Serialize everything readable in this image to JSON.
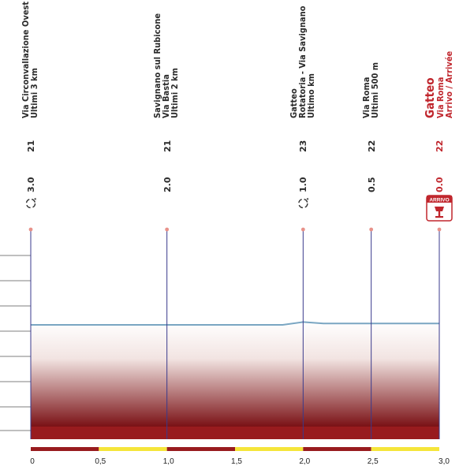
{
  "chart_data": {
    "type": "area",
    "title": "",
    "xlabel": "",
    "ylabel": "",
    "x_ticks": [
      "0",
      "0,5",
      "1,0",
      "1,5",
      "2,0",
      "2,5",
      "3,0"
    ],
    "xlim": [
      0,
      3.0
    ],
    "profile": [
      {
        "km": 0.0,
        "alt": 21
      },
      {
        "km": 1.0,
        "alt": 21
      },
      {
        "km": 1.85,
        "alt": 21
      },
      {
        "km": 2.0,
        "alt": 23
      },
      {
        "km": 2.15,
        "alt": 22
      },
      {
        "km": 2.5,
        "alt": 22
      },
      {
        "km": 3.0,
        "alt": 22
      }
    ],
    "waypoints": [
      {
        "km": 0.0,
        "dist": "3.0",
        "alt": "21",
        "lines": [
          "Via Circonvallazione Ovest",
          "Ultimi 3 km"
        ],
        "icon": "roundabout",
        "finish": false
      },
      {
        "km": 1.0,
        "dist": "2.0",
        "alt": "21",
        "lines": [
          "Savignano sul Rubicone",
          "Via Bastia",
          "Ultimi 2 km"
        ],
        "icon": "",
        "finish": false
      },
      {
        "km": 2.0,
        "dist": "1.0",
        "alt": "23",
        "lines": [
          "Gatteo",
          "Rotatoria - Via Savignano",
          "Ultimo km"
        ],
        "icon": "roundabout",
        "finish": false
      },
      {
        "km": 2.5,
        "dist": "0.5",
        "alt": "22",
        "lines": [
          "Via Roma",
          "Ultimi 500 m"
        ],
        "icon": "",
        "finish": false
      },
      {
        "km": 3.0,
        "dist": "0.0",
        "alt": "22",
        "lines": [
          "Gatteo",
          "Via Roma",
          "Arrivo / Arrivée"
        ],
        "icon": "finish",
        "finish": true
      }
    ],
    "finish_badge": "ARRIVO",
    "colors": {
      "guide": "#3a3a8c",
      "profile_line": "#7aa6c2",
      "fill_top": "#ffffff",
      "fill_bottom": "#7a1115",
      "base": "#981b1e",
      "accent_red": "#c0262d",
      "scale_red": "#981b1e",
      "scale_yellow": "#f5e53a",
      "dot": "#e8928a",
      "grid": "#555555"
    },
    "grid": true
  }
}
